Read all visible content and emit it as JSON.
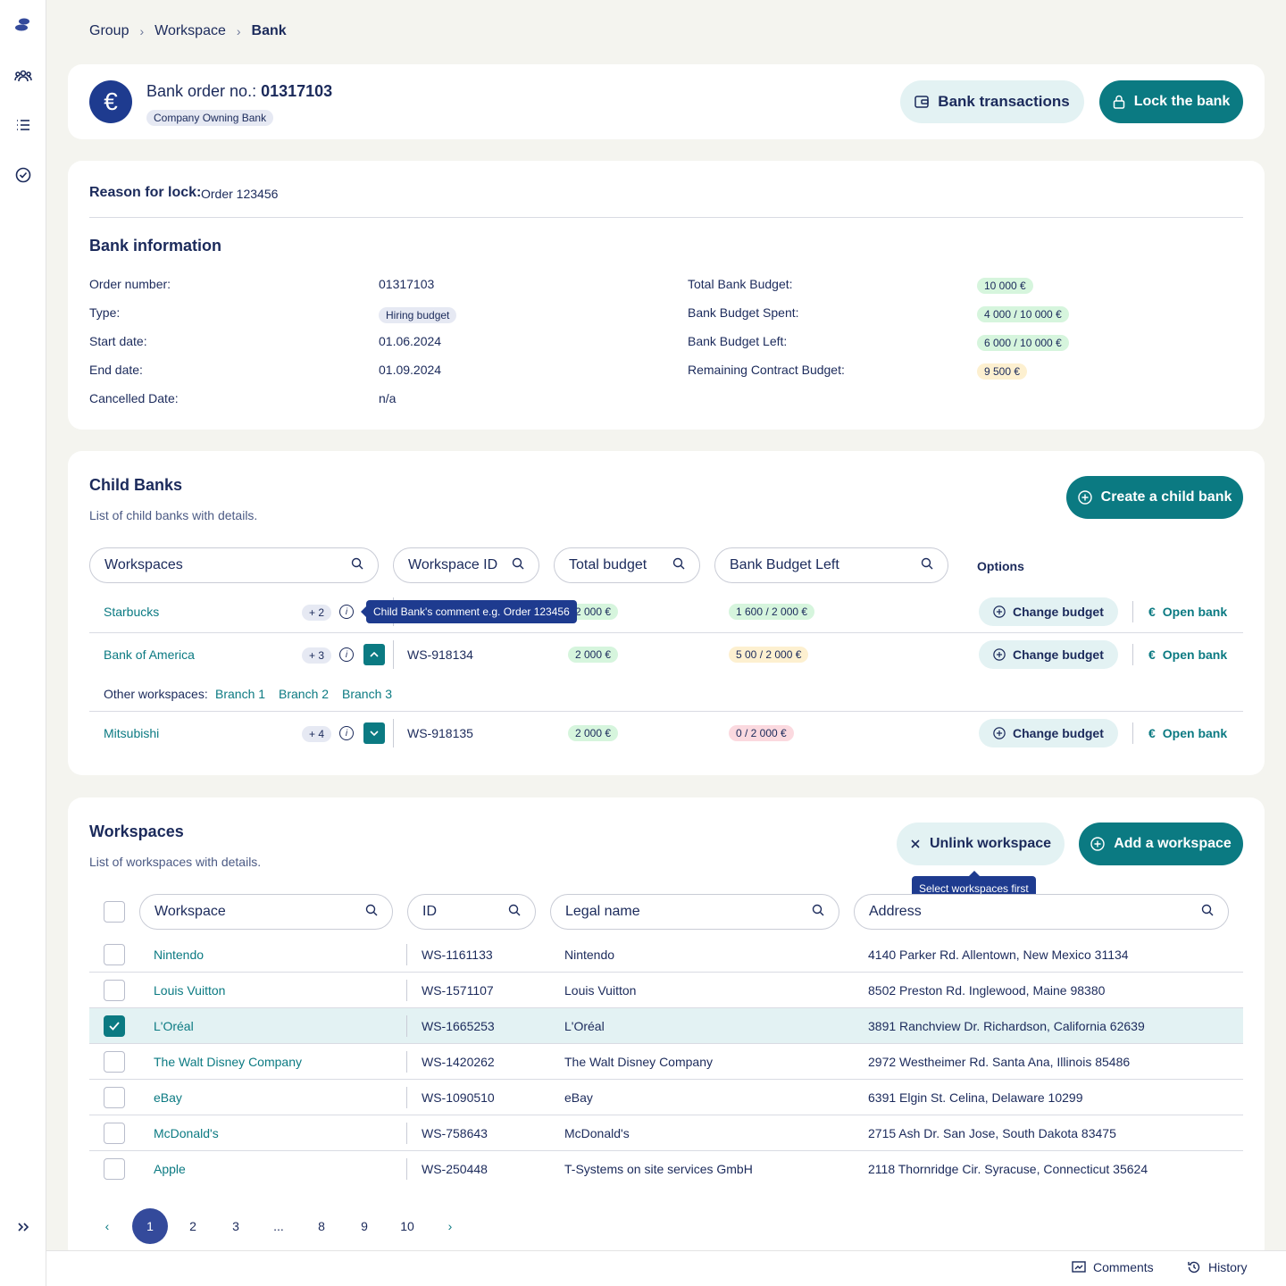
{
  "breadcrumb": [
    "Group",
    "Workspace",
    "Bank"
  ],
  "header": {
    "title_prefix": "Bank order no.:",
    "order_no": "01317103",
    "tag": "Company Owning Bank",
    "bank_transactions": "Bank transactions",
    "lock_bank": "Lock the bank"
  },
  "info": {
    "reason_label": "Reason for lock:",
    "reason_value": "Order 123456",
    "section_title": "Bank information",
    "left": [
      {
        "label": "Order number:",
        "value": "01317103",
        "pill": ""
      },
      {
        "label": "Type:",
        "value": "Hiring budget",
        "pill": "grey"
      },
      {
        "label": "Start date:",
        "value": "01.06.2024",
        "pill": ""
      },
      {
        "label": "End date:",
        "value": "01.09.2024",
        "pill": ""
      },
      {
        "label": "Cancelled Date:",
        "value": "n/a",
        "pill": ""
      }
    ],
    "right": [
      {
        "label": "Total Bank Budget:",
        "value": "10 000 €",
        "pill": "green"
      },
      {
        "label": "Bank Budget Spent:",
        "value": "4 000 / 10 000 €",
        "pill": "green"
      },
      {
        "label": "Bank Budget Left:",
        "value": "6 000 / 10 000 €",
        "pill": "green"
      },
      {
        "label": "Remaining Contract Budget:",
        "value": "9 500 €",
        "pill": "yellow"
      }
    ]
  },
  "child_banks": {
    "title": "Child Banks",
    "subtitle": "List of child banks with details.",
    "create_btn": "Create a child bank",
    "filters": {
      "workspaces": "Workspaces",
      "workspace_id": "Workspace ID",
      "total_budget": "Total budget",
      "budget_left": "Bank Budget Left",
      "options": "Options"
    },
    "tooltip": "Child Bank's comment e.g. Order 123456",
    "rows": [
      {
        "name": "Starbucks",
        "count": "+ 2",
        "id": "",
        "total": "2 000 €",
        "left": "1 600 / 2 000 €",
        "left_pill": "green",
        "expanded": false,
        "has_toggle": false
      },
      {
        "name": "Bank of America",
        "count": "+ 3",
        "id": "WS-918134",
        "total": "2 000 €",
        "left": "5 00 / 2 000 €",
        "left_pill": "yellow",
        "expanded": true,
        "has_toggle": true
      },
      {
        "name": "Mitsubishi",
        "count": "+ 4",
        "id": "WS-918135",
        "total": "2 000 €",
        "left": "0 / 2 000 €",
        "left_pill": "red",
        "expanded": false,
        "has_toggle": true
      }
    ],
    "change_budget": "Change budget",
    "open_bank": "Open bank",
    "other_label": "Other workspaces:",
    "other_branches": [
      "Branch 1",
      "Branch 2",
      "Branch 3"
    ]
  },
  "workspaces": {
    "title": "Workspaces",
    "subtitle": "List of workspaces with details.",
    "unlink_btn": "Unlink workspace",
    "add_btn": "Add a workspace",
    "tooltip": "Select workspaces first",
    "filters": {
      "workspace": "Workspace",
      "id": "ID",
      "legal_name": "Legal name",
      "address": "Address"
    },
    "rows": [
      {
        "name": "Nintendo",
        "id": "WS-1161133",
        "legal": "Nintendo",
        "address": "4140 Parker Rd. Allentown, New Mexico 31134",
        "checked": false
      },
      {
        "name": "Louis Vuitton",
        "id": "WS-1571107",
        "legal": "Louis Vuitton",
        "address": "8502 Preston Rd. Inglewood, Maine 98380",
        "checked": false
      },
      {
        "name": "L'Oréal",
        "id": "WS-1665253",
        "legal": "L'Oréal",
        "address": "3891 Ranchview Dr. Richardson, California 62639",
        "checked": true
      },
      {
        "name": "The Walt Disney Company",
        "id": "WS-1420262",
        "legal": "The Walt Disney Company",
        "address": "2972 Westheimer Rd. Santa Ana, Illinois 85486",
        "checked": false
      },
      {
        "name": "eBay",
        "id": "WS-1090510",
        "legal": "eBay",
        "address": "6391 Elgin St. Celina, Delaware 10299",
        "checked": false
      },
      {
        "name": "McDonald's",
        "id": "WS-758643",
        "legal": "McDonald's",
        "address": "2715 Ash Dr. San Jose, South Dakota 83475",
        "checked": false
      },
      {
        "name": "Apple",
        "id": "WS-250448",
        "legal": "T-Systems on site services GmbH",
        "address": "2118 Thornridge Cir. Syracuse, Connecticut 35624",
        "checked": false
      }
    ]
  },
  "pagination": [
    "1",
    "2",
    "3",
    "...",
    "8",
    "9",
    "10"
  ],
  "bottom": {
    "comments": "Comments",
    "history": "History"
  },
  "colors": {
    "teal": "#0b7a82",
    "navy": "#1b2a5b",
    "background": "#f4f4ef"
  }
}
